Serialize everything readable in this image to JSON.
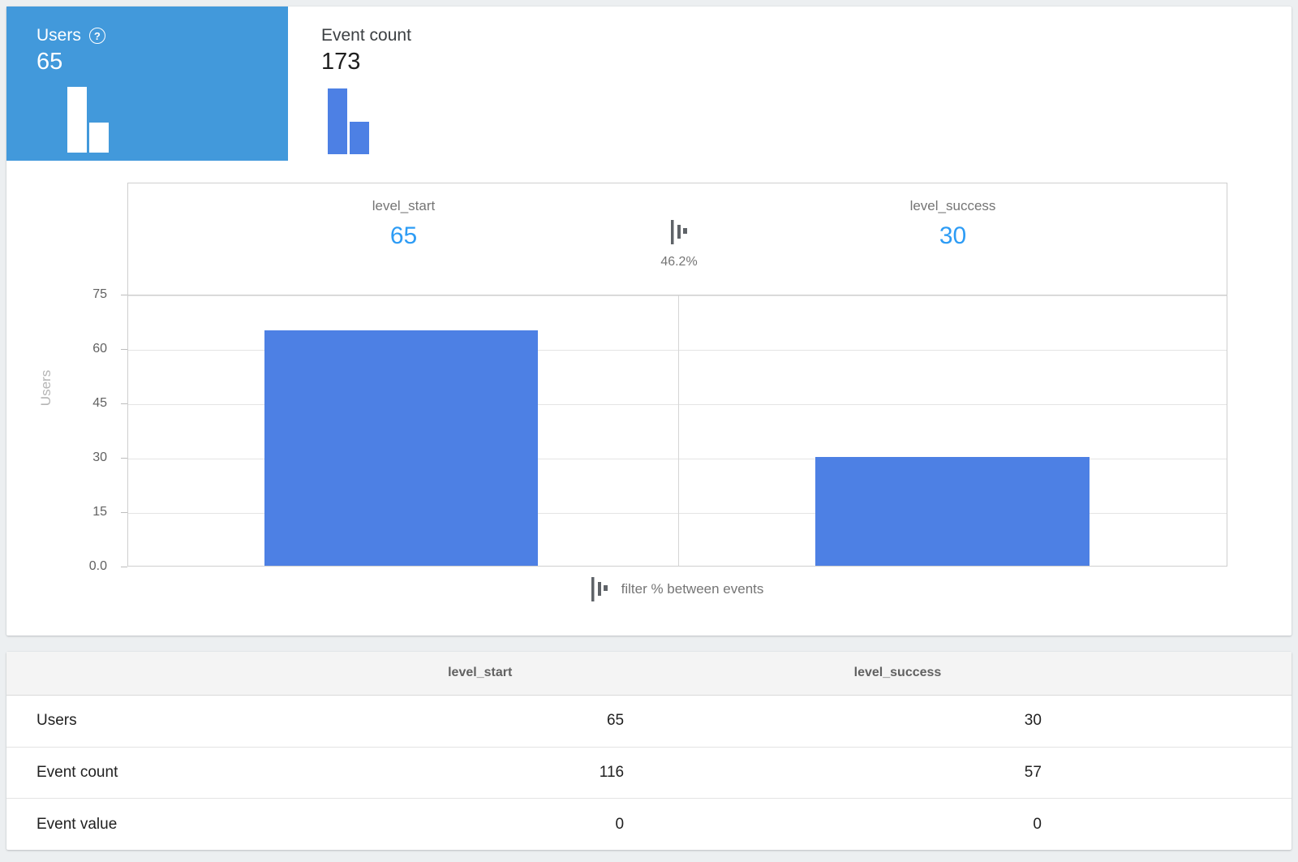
{
  "colors": {
    "tab_selected_bg": "#4299db",
    "bar_blue": "#4d80e4",
    "value_blue": "#2d9cf5",
    "page_bg": "#eceff1"
  },
  "metric_tabs": [
    {
      "label": "Users",
      "value": "65",
      "selected": true,
      "has_help_icon": true,
      "mini_values": [
        65,
        30
      ]
    },
    {
      "label": "Event count",
      "value": "173",
      "selected": false,
      "has_help_icon": false,
      "mini_values": [
        116,
        57
      ]
    }
  ],
  "funnel": {
    "steps": [
      {
        "label": "level_start",
        "value": "65"
      },
      {
        "label": "level_success",
        "value": "30"
      }
    ],
    "conversion_rate": "46.2%"
  },
  "chart_data": {
    "type": "bar",
    "categories": [
      "level_start",
      "level_success"
    ],
    "series": [
      {
        "name": "Users",
        "values": [
          65,
          30
        ]
      }
    ],
    "title": "",
    "xlabel": "",
    "ylabel": "Users",
    "ylim": [
      0,
      75
    ],
    "yticks": [
      {
        "label": "0.0",
        "value": 0
      },
      {
        "label": "15",
        "value": 15
      },
      {
        "label": "30",
        "value": 30
      },
      {
        "label": "45",
        "value": 45
      },
      {
        "label": "60",
        "value": 60
      },
      {
        "label": "75",
        "value": 75
      }
    ],
    "grid": "horizontal",
    "legend_position": "none",
    "annotations": [
      "65",
      "30",
      "46.2%"
    ]
  },
  "legend": {
    "label": "filter % between events"
  },
  "table": {
    "column_headers": [
      "level_start",
      "level_success"
    ],
    "rows": [
      {
        "label": "Users",
        "values": [
          "65",
          "30"
        ]
      },
      {
        "label": "Event count",
        "values": [
          "116",
          "57"
        ]
      },
      {
        "label": "Event value",
        "values": [
          "0",
          "0"
        ]
      }
    ]
  }
}
